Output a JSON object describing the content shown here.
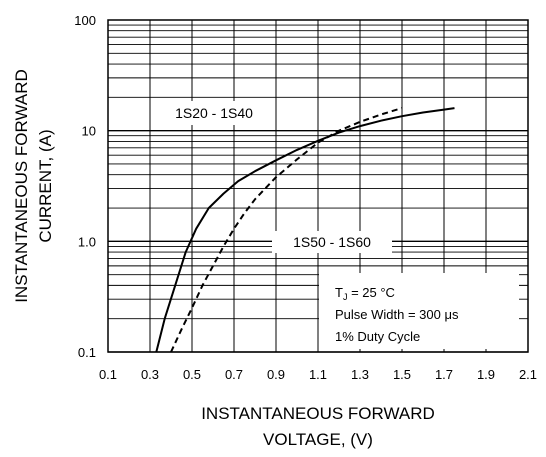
{
  "chart_data": {
    "type": "line",
    "xlabel_lines": [
      "INSTANTANEOUS FORWARD",
      "VOLTAGE, (V)"
    ],
    "ylabel_lines": [
      "INSTANTANEOUS FORWARD",
      "CURRENT, (A)"
    ],
    "x_ticks": [
      "0.1",
      "0.3",
      "0.5",
      "0.7",
      "0.9",
      "1.1",
      "1.3",
      "1.5",
      "1.7",
      "1.9",
      "2.1"
    ],
    "y_ticks": [
      "0.1",
      "1.0",
      "10",
      "100"
    ],
    "xlim": [
      0.1,
      2.1
    ],
    "ylim": [
      0.1,
      100
    ],
    "y_scale": "log",
    "grid": true,
    "series": [
      {
        "name": "1S20 - 1S40",
        "style": "solid",
        "x": [
          0.33,
          0.37,
          0.42,
          0.47,
          0.52,
          0.58,
          0.65,
          0.72,
          0.8,
          0.9,
          1.0,
          1.1,
          1.2,
          1.3,
          1.4,
          1.5,
          1.6,
          1.7,
          1.75
        ],
        "y": [
          0.1,
          0.2,
          0.4,
          0.8,
          1.3,
          2.0,
          2.7,
          3.5,
          4.3,
          5.4,
          6.7,
          8.1,
          9.6,
          11.0,
          12.3,
          13.5,
          14.6,
          15.5,
          16.0
        ]
      },
      {
        "name": "1S50 - 1S60",
        "style": "dashed",
        "x": [
          0.4,
          0.45,
          0.5,
          0.55,
          0.6,
          0.65,
          0.7,
          0.75,
          0.8,
          0.9,
          1.0,
          1.1,
          1.2,
          1.3,
          1.4,
          1.5
        ],
        "y": [
          0.1,
          0.16,
          0.25,
          0.4,
          0.6,
          0.9,
          1.3,
          1.8,
          2.4,
          3.8,
          5.5,
          7.8,
          10.0,
          12.0,
          14.0,
          16.0
        ]
      }
    ],
    "annotations": {
      "tj_main": "T",
      "tj_sub": "J",
      "tj_rest": " = 25 °C",
      "pulse": "Pulse Width  = 300 μs",
      "duty": "1% Duty Cycle"
    },
    "colors": {
      "line": "#000000",
      "grid": "#000000",
      "background": "#ffffff"
    }
  }
}
